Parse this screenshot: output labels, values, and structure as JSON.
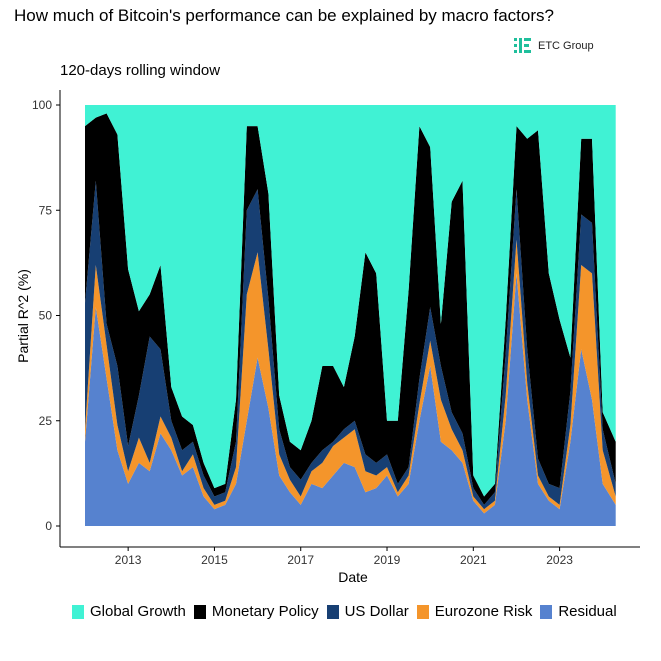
{
  "header": {
    "title": "How much of Bitcoin's performance can be explained by macro factors?",
    "subtitle": "120-days rolling window",
    "logo_text": "ETC Group"
  },
  "colors": {
    "global_growth": "#40f2d4",
    "monetary_policy": "#000000",
    "us_dollar": "#173f73",
    "eurozone_risk": "#f4952b",
    "residual": "#5682cf",
    "logo": "#1fbf9c"
  },
  "chart_data": {
    "type": "area",
    "stacking": "stacked",
    "title": "How much of Bitcoin's performance can be explained by macro factors?",
    "subtitle": "120-days rolling window",
    "xlabel": "Date",
    "ylabel": "Partial R^2 (%)",
    "xlim": [
      2012.0,
      2024.4
    ],
    "ylim": [
      0,
      100
    ],
    "x_ticks": [
      2013,
      2015,
      2017,
      2019,
      2021,
      2023
    ],
    "y_ticks": [
      0,
      25,
      50,
      75,
      100
    ],
    "grid": false,
    "legend_position": "bottom",
    "x": [
      2012.0,
      2012.25,
      2012.5,
      2012.75,
      2013.0,
      2013.25,
      2013.5,
      2013.75,
      2014.0,
      2014.25,
      2014.5,
      2014.75,
      2015.0,
      2015.25,
      2015.5,
      2015.75,
      2016.0,
      2016.25,
      2016.5,
      2016.75,
      2017.0,
      2017.25,
      2017.5,
      2017.75,
      2018.0,
      2018.25,
      2018.5,
      2018.75,
      2019.0,
      2019.25,
      2019.5,
      2019.75,
      2020.0,
      2020.25,
      2020.5,
      2020.75,
      2021.0,
      2021.25,
      2021.5,
      2021.75,
      2022.0,
      2022.25,
      2022.5,
      2022.75,
      2023.0,
      2023.25,
      2023.5,
      2023.75,
      2024.0,
      2024.3
    ],
    "series": [
      {
        "name": "Residual",
        "values": [
          20,
          52,
          35,
          18,
          10,
          15,
          13,
          22,
          18,
          12,
          14,
          7,
          4,
          5,
          10,
          25,
          40,
          28,
          12,
          8,
          5,
          10,
          9,
          12,
          15,
          14,
          8,
          9,
          12,
          7,
          10,
          25,
          38,
          20,
          18,
          15,
          6,
          3,
          5,
          25,
          60,
          30,
          10,
          6,
          4,
          20,
          42,
          30,
          10,
          5
        ]
      },
      {
        "name": "Eurozone Risk",
        "values": [
          3,
          10,
          8,
          6,
          3,
          6,
          2,
          4,
          3,
          1,
          3,
          2,
          1,
          1,
          4,
          30,
          25,
          14,
          5,
          3,
          2,
          3,
          6,
          7,
          6,
          9,
          5,
          3,
          2,
          1,
          2,
          4,
          6,
          10,
          5,
          3,
          1,
          1,
          1,
          6,
          8,
          4,
          2,
          1,
          1,
          4,
          20,
          30,
          8,
          2
        ]
      },
      {
        "name": "US Dollar",
        "values": [
          30,
          20,
          5,
          14,
          6,
          10,
          30,
          16,
          4,
          5,
          3,
          3,
          2,
          2,
          6,
          20,
          15,
          12,
          6,
          3,
          4,
          2,
          3,
          1,
          2,
          2,
          4,
          3,
          3,
          2,
          2,
          6,
          8,
          8,
          4,
          4,
          2,
          1,
          2,
          10,
          12,
          8,
          4,
          3,
          4,
          8,
          12,
          12,
          5,
          3
        ]
      },
      {
        "name": "Monetary Policy",
        "values": [
          42,
          15,
          50,
          55,
          42,
          20,
          10,
          20,
          8,
          8,
          4,
          3,
          2,
          2,
          10,
          20,
          15,
          25,
          8,
          6,
          7,
          10,
          20,
          18,
          10,
          20,
          48,
          45,
          8,
          15,
          42,
          60,
          38,
          10,
          50,
          60,
          3,
          2,
          2,
          8,
          15,
          50,
          78,
          50,
          40,
          8,
          18,
          20,
          4,
          10
        ]
      },
      {
        "name": "Global Growth",
        "values": [
          5,
          3,
          2,
          7,
          39,
          49,
          45,
          38,
          67,
          74,
          76,
          85,
          91,
          90,
          70,
          5,
          5,
          21,
          69,
          80,
          82,
          75,
          62,
          62,
          67,
          55,
          35,
          40,
          75,
          75,
          44,
          5,
          10,
          52,
          23,
          18,
          88,
          93,
          90,
          51,
          5,
          8,
          6,
          40,
          51,
          60,
          8,
          8,
          73,
          80
        ]
      }
    ]
  },
  "legend": {
    "items": [
      {
        "label": "Global Growth",
        "color": "#40f2d4"
      },
      {
        "label": "Monetary Policy",
        "color": "#000000"
      },
      {
        "label": "US Dollar",
        "color": "#173f73"
      },
      {
        "label": "Eurozone Risk",
        "color": "#f4952b"
      },
      {
        "label": "Residual",
        "color": "#5682cf"
      }
    ]
  }
}
